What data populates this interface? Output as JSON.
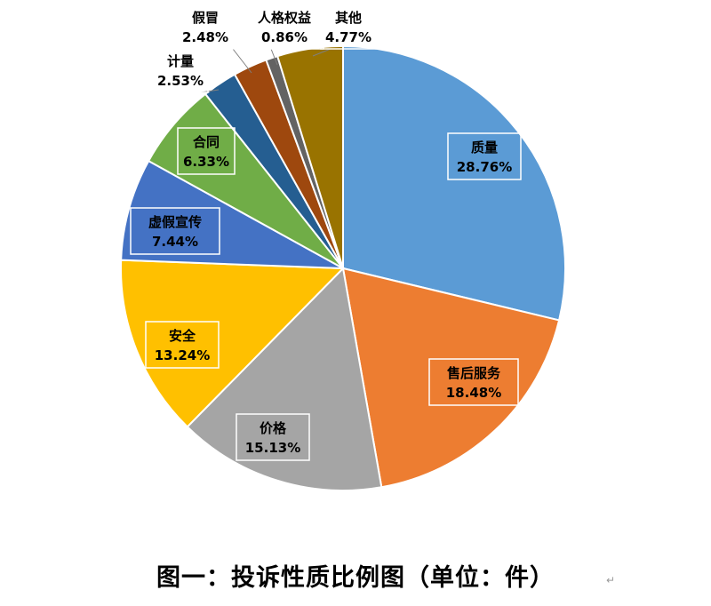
{
  "chart_data": {
    "type": "pie",
    "slices": [
      {
        "name": "质量",
        "value": 28.76,
        "label": "28.76%",
        "color": "#5B9BD5"
      },
      {
        "name": "售后服务",
        "value": 18.48,
        "label": "18.48%",
        "color": "#ED7D31"
      },
      {
        "name": "价格",
        "value": 15.13,
        "label": "15.13%",
        "color": "#A5A5A5"
      },
      {
        "name": "安全",
        "value": 13.24,
        "label": "13.24%",
        "color": "#FFC000"
      },
      {
        "name": "虚假宣传",
        "value": 7.44,
        "label": "7.44%",
        "color": "#4472C4"
      },
      {
        "name": "合同",
        "value": 6.33,
        "label": "6.33%",
        "color": "#70AD47"
      },
      {
        "name": "计量",
        "value": 2.53,
        "label": "2.53%",
        "color": "#255E91"
      },
      {
        "name": "假冒",
        "value": 2.48,
        "label": "2.48%",
        "color": "#9E480E"
      },
      {
        "name": "人格权益",
        "value": 0.86,
        "label": "0.86%",
        "color": "#636363"
      },
      {
        "name": "其他",
        "value": 4.77,
        "label": "4.77%",
        "color": "#997300"
      }
    ],
    "start_angle": "12 o'clock",
    "direction": "clockwise",
    "legend": "none",
    "data_labels": "category name and percentage"
  },
  "caption": "图一：投诉性质比例图（单位：件）",
  "paragraph_mark": "↵"
}
